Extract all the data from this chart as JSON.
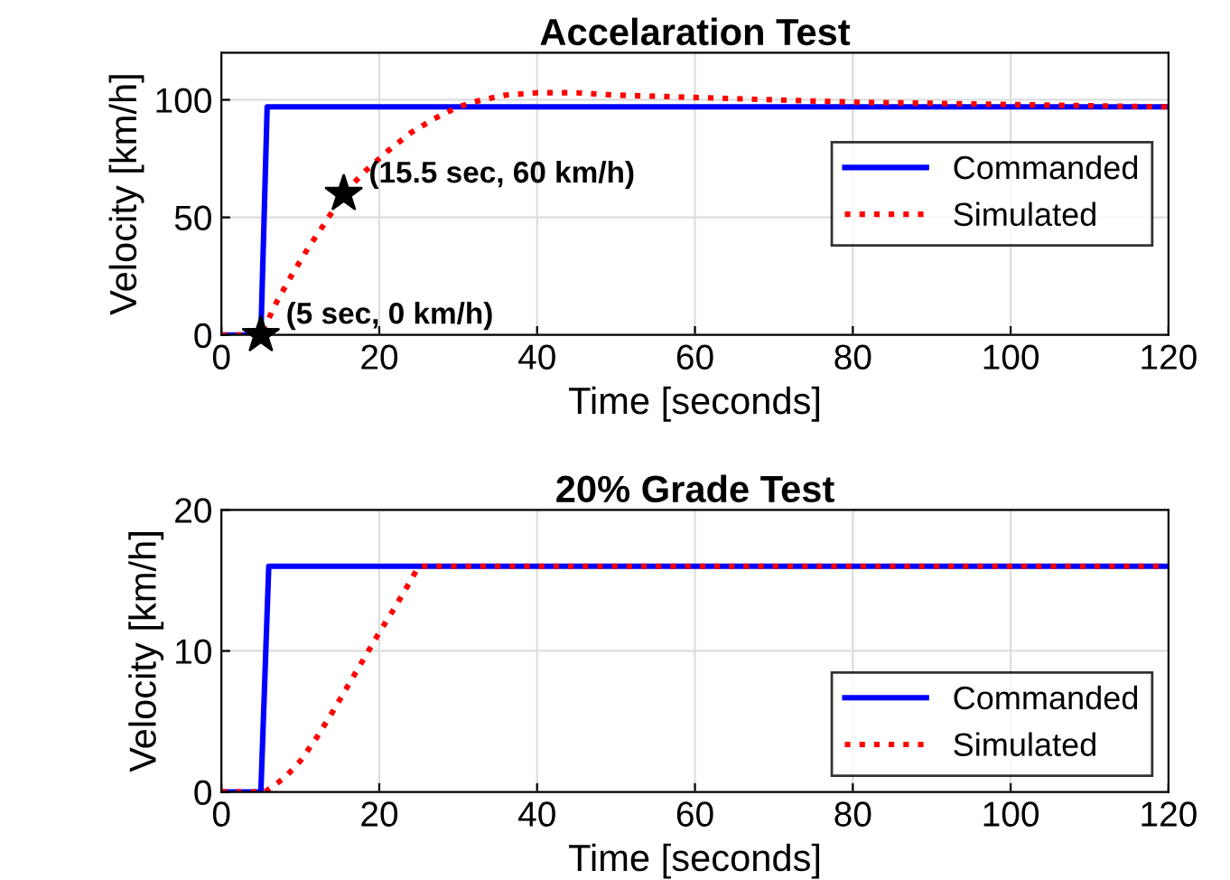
{
  "chart_data": [
    {
      "type": "line",
      "title": "Accelaration Test",
      "xlabel": "Time [seconds]",
      "ylabel": "Velocity [km/h]",
      "xlim": [
        0,
        120
      ],
      "xticks": [
        0,
        20,
        40,
        60,
        80,
        100,
        120
      ],
      "ylim": [
        0,
        120
      ],
      "yticks": [
        0,
        50,
        100
      ],
      "grid": true,
      "legend": "right",
      "series": [
        {
          "name": "Commanded",
          "color": "#0000ff",
          "line_style": "solid",
          "x": [
            0,
            5,
            5.8,
            120
          ],
          "values": [
            0,
            0,
            97,
            97
          ]
        },
        {
          "name": "Simulated",
          "color": "#ff0000",
          "line_style": "dotted",
          "x": [
            0,
            5,
            7,
            9,
            11,
            13,
            15.5,
            18,
            21,
            24,
            27,
            30,
            33,
            36,
            40,
            45,
            50,
            60,
            70,
            80,
            90,
            100,
            110,
            120
          ],
          "values": [
            0,
            0,
            14,
            26,
            37,
            47,
            60,
            69,
            78,
            86,
            92,
            97,
            100,
            102,
            103,
            103,
            102,
            101,
            100,
            99,
            98.5,
            98,
            97.5,
            97
          ]
        },
        {
          "type": "scatter",
          "color": "#000000",
          "marker": "star",
          "x": [
            5,
            15.5
          ],
          "values": [
            0,
            60
          ]
        }
      ],
      "annotations": [
        {
          "text": "(15.5 sec, 60 km/h)",
          "x": 15.5,
          "y": 60
        },
        {
          "text": "(5 sec, 0 km/h)",
          "x": 5,
          "y": 0
        }
      ]
    },
    {
      "type": "line",
      "title": "20% Grade Test",
      "xlabel": "Time [seconds]",
      "ylabel": "Velocity [km/h]",
      "xlim": [
        0,
        120
      ],
      "xticks": [
        0,
        20,
        40,
        60,
        80,
        100,
        120
      ],
      "ylim": [
        0,
        20
      ],
      "yticks": [
        0,
        10,
        20
      ],
      "grid": true,
      "legend": "lower right",
      "series": [
        {
          "name": "Commanded",
          "color": "#0000ff",
          "line_style": "solid",
          "x": [
            0,
            5,
            6,
            120
          ],
          "values": [
            0,
            0,
            16,
            16
          ]
        },
        {
          "name": "Simulated",
          "color": "#ff0000",
          "line_style": "dotted",
          "x": [
            0,
            5.5,
            8,
            10,
            12,
            14,
            16,
            18,
            20,
            22,
            24,
            25,
            120
          ],
          "values": [
            0,
            0,
            1,
            2.2,
            3.8,
            5.6,
            7.5,
            9.4,
            11.3,
            13.1,
            15,
            16,
            16
          ]
        }
      ]
    }
  ]
}
